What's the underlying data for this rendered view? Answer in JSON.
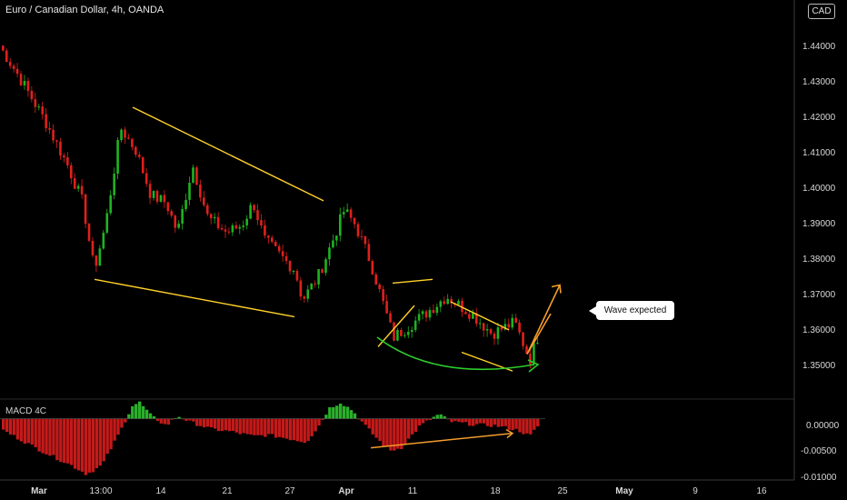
{
  "header": {
    "symbol_line": "Euro / Canadian Dollar, 4h, OANDA",
    "currency_badge": "CAD",
    "macd_label": "MACD 4C"
  },
  "annotation": {
    "label": "Wave expected"
  },
  "colors": {
    "up": "#1fb31f",
    "down": "#e0201c",
    "trendline": "#ffd12a",
    "arc": "#2ecc2e",
    "arrow": "#f39c2b",
    "macd_pos": "#2bb02b",
    "macd_neg": "#c41a1a",
    "axis_text": "#d9d9d9"
  },
  "chart_data": [
    {
      "type": "candlestick",
      "title": "Euro / Canadian Dollar, 4h, OANDA",
      "x_tick_labels": [
        "Mar",
        "13:00",
        "14",
        "21",
        "27",
        "Apr",
        "11",
        "18",
        "25",
        "May",
        "9",
        "16"
      ],
      "y_tick_labels": [
        "1.44000",
        "1.43000",
        "1.42000",
        "1.41000",
        "1.40000",
        "1.39000",
        "1.38000",
        "1.37000",
        "1.36000",
        "1.35000"
      ],
      "ylim": [
        1.3455,
        1.4495
      ],
      "price_path": [
        [
          0,
          1.44
        ],
        [
          5,
          1.432
        ],
        [
          12,
          1.42
        ],
        [
          18,
          1.408
        ],
        [
          22,
          1.398
        ],
        [
          25,
          1.38
        ],
        [
          28,
          1.392
        ],
        [
          32,
          1.418
        ],
        [
          36,
          1.412
        ],
        [
          40,
          1.4
        ],
        [
          44,
          1.398
        ],
        [
          47,
          1.39
        ],
        [
          51,
          1.408
        ],
        [
          55,
          1.394
        ],
        [
          60,
          1.39
        ],
        [
          64,
          1.392
        ],
        [
          67,
          1.398
        ],
        [
          70,
          1.388
        ],
        [
          74,
          1.384
        ],
        [
          78,
          1.38
        ],
        [
          80,
          1.372
        ],
        [
          84,
          1.378
        ],
        [
          88,
          1.388
        ],
        [
          91,
          1.396
        ],
        [
          94,
          1.392
        ],
        [
          98,
          1.382
        ],
        [
          104,
          1.362
        ],
        [
          112,
          1.368
        ],
        [
          118,
          1.373
        ],
        [
          125,
          1.368
        ],
        [
          130,
          1.363
        ],
        [
          136,
          1.366
        ],
        [
          140,
          1.356
        ],
        [
          142,
          1.362
        ]
      ],
      "trendlines": [
        {
          "from": [
            35.5,
            1.4235
          ],
          "to": [
            88,
            1.3985
          ]
        },
        {
          "from": [
            25,
            1.3775
          ],
          "to": [
            80,
            1.3675
          ]
        },
        {
          "from": [
            103,
            1.3595
          ],
          "to": [
            113,
            1.3705
          ]
        },
        {
          "from": [
            107,
            1.3765
          ],
          "to": [
            118,
            1.3775
          ]
        },
        {
          "from": [
            123,
            1.3715
          ],
          "to": [
            139,
            1.364
          ]
        },
        {
          "from": [
            126,
            1.358
          ],
          "to": [
            140,
            1.353
          ]
        }
      ],
      "projection": {
        "points": [
          [
            144,
            1.3575
          ],
          [
            153,
            1.376
          ]
        ]
      },
      "annotation": "Wave expected"
    },
    {
      "type": "bar",
      "name": "MACD 4C",
      "y_tick_labels": [
        "0.00000",
        "-0.00500",
        "-0.01000"
      ],
      "ylim": [
        -0.0105,
        0.0032
      ],
      "histogram_path": [
        [
          0,
          -0.002
        ],
        [
          10,
          -0.0055
        ],
        [
          18,
          -0.008
        ],
        [
          22,
          -0.0095
        ],
        [
          26,
          -0.008
        ],
        [
          31,
          -0.002
        ],
        [
          34,
          0.0022
        ],
        [
          36,
          0.0028
        ],
        [
          39,
          0.0005
        ],
        [
          43,
          -0.0012
        ],
        [
          46,
          0.0005
        ],
        [
          49,
          -0.0005
        ],
        [
          55,
          -0.0018
        ],
        [
          60,
          -0.0022
        ],
        [
          66,
          -0.003
        ],
        [
          70,
          -0.0028
        ],
        [
          76,
          -0.0035
        ],
        [
          80,
          -0.004
        ],
        [
          83,
          -0.0015
        ],
        [
          86,
          0.0018
        ],
        [
          89,
          0.0028
        ],
        [
          92,
          0.0015
        ],
        [
          95,
          -0.0008
        ],
        [
          98,
          -0.003
        ],
        [
          102,
          -0.0055
        ],
        [
          105,
          -0.005
        ],
        [
          110,
          -0.0012
        ],
        [
          115,
          0.0008
        ],
        [
          118,
          -0.0005
        ],
        [
          124,
          -0.001
        ],
        [
          130,
          -0.0012
        ],
        [
          136,
          -0.002
        ],
        [
          139,
          -0.003
        ],
        [
          142,
          -0.0005
        ]
      ],
      "divergence_line": {
        "from": [
          101,
          -0.005
        ],
        "to": [
          140,
          -0.0025
        ]
      }
    }
  ]
}
